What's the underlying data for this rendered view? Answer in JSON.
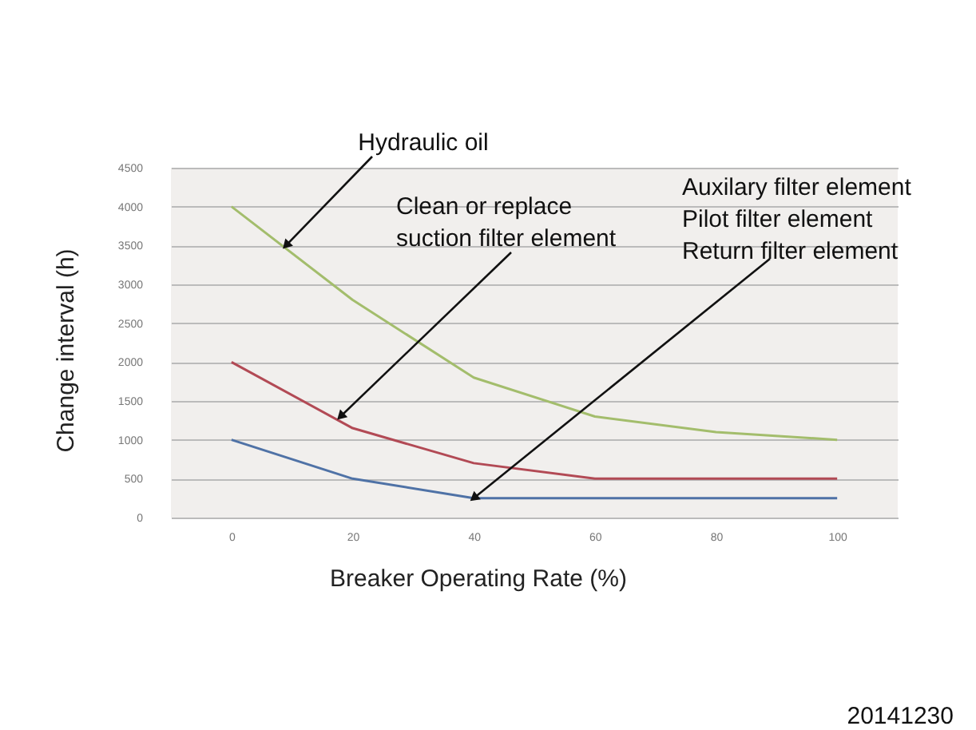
{
  "chart_data": {
    "type": "line",
    "xlabel": "Breaker Operating Rate (%)",
    "ylabel": "Change interval (h)",
    "x": [
      0,
      20,
      40,
      60,
      80,
      100
    ],
    "series": [
      {
        "color": "#a3bd6c",
        "values": [
          4000,
          2800,
          1800,
          1300,
          1100,
          1000
        ]
      },
      {
        "color": "#b24a55",
        "values": [
          2000,
          1150,
          700,
          500,
          500,
          500
        ]
      },
      {
        "color": "#4f72a6",
        "values": [
          1000,
          500,
          250,
          250,
          250,
          250
        ]
      }
    ],
    "xlim": [
      -10,
      110
    ],
    "xticks": [
      0,
      20,
      40,
      60,
      80,
      100
    ],
    "ylim": [
      0,
      4500
    ],
    "yticks": [
      0,
      500,
      1000,
      1500,
      2000,
      2500,
      3000,
      3500,
      4000,
      4500
    ],
    "grid": "y",
    "marker": "none",
    "line_style": "solid",
    "annotations": [
      {
        "text": "Hydraulic oil",
        "x": 9,
        "y": 3500
      },
      {
        "text": "Clean or replace\nsuction filter element",
        "x": 18,
        "y": 1300
      },
      {
        "text": "Auxilary filter element\nPilot filter element\nReturn filter element",
        "x": 40,
        "y": 250
      },
      "20141230"
    ]
  }
}
